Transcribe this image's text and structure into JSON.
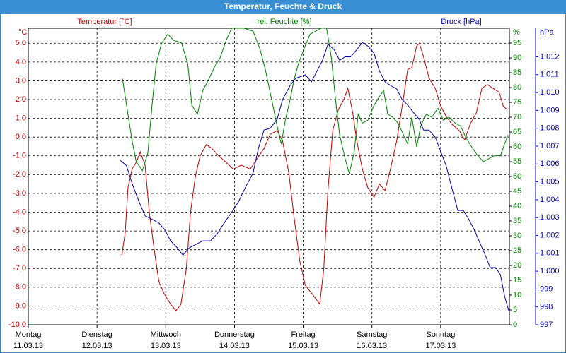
{
  "chart_data": {
    "type": "line",
    "title": "Temperatur, Feuchte & Druck",
    "ylabel": "°C",
    "y2label": "%",
    "y3label": "hPa",
    "xlim": [
      0,
      7
    ],
    "xticks": [
      {
        "value": 0,
        "label": "Montag",
        "date": "11.03.13"
      },
      {
        "value": 1,
        "label": "Dienstag",
        "date": "12.03.13"
      },
      {
        "value": 2,
        "label": "Mittwoch",
        "date": "13.03.13"
      },
      {
        "value": 3,
        "label": "Donnerstag",
        "date": "14.03.13"
      },
      {
        "value": 4,
        "label": "Freitag",
        "date": "15.03.13"
      },
      {
        "value": 5,
        "label": "Samstag",
        "date": "16.03.13"
      },
      {
        "value": 6,
        "label": "Sonntag",
        "date": "17.03.13"
      }
    ],
    "ylim": [
      -10,
      5.8
    ],
    "yticks": [
      {
        "value": 5,
        "label": "5,0"
      },
      {
        "value": 4,
        "label": "4,0"
      },
      {
        "value": 3,
        "label": "3,0"
      },
      {
        "value": 2,
        "label": "2,0"
      },
      {
        "value": 1,
        "label": "1,0"
      },
      {
        "value": 0,
        "label": "0,0"
      },
      {
        "value": -1,
        "label": "-1,0"
      },
      {
        "value": -2,
        "label": "-2,0"
      },
      {
        "value": -3,
        "label": "-3,0"
      },
      {
        "value": -4,
        "label": "-4,0"
      },
      {
        "value": -5,
        "label": "-5,0"
      },
      {
        "value": -6,
        "label": "-6,0"
      },
      {
        "value": -7,
        "label": "-7,0"
      },
      {
        "value": -8,
        "label": "-8,0"
      },
      {
        "value": -9,
        "label": "-9,0"
      },
      {
        "value": -10,
        "label": "-10,0"
      }
    ],
    "y2lim": [
      0,
      100
    ],
    "y2ticks": [
      0,
      5,
      10,
      15,
      20,
      25,
      30,
      35,
      40,
      45,
      50,
      55,
      60,
      65,
      70,
      75,
      80,
      85,
      90,
      95
    ],
    "y3lim": [
      997,
      1013.6
    ],
    "y3ticks": [
      997,
      998,
      999,
      {
        "value": 1000,
        "label": "1.000"
      },
      {
        "value": 1001,
        "label": "1.001"
      },
      {
        "value": 1002,
        "label": "1.002"
      },
      {
        "value": 1003,
        "label": "1.003"
      },
      {
        "value": 1004,
        "label": "1.004"
      },
      {
        "value": 1005,
        "label": "1.005"
      },
      {
        "value": 1006,
        "label": "1.006"
      },
      {
        "value": 1007,
        "label": "1.007"
      },
      {
        "value": 1008,
        "label": "1.008"
      },
      {
        "value": 1009,
        "label": "1.009"
      },
      {
        "value": 1010,
        "label": "1.010"
      },
      {
        "value": 1011,
        "label": "1.011"
      },
      {
        "value": 1012,
        "label": "1.012"
      }
    ],
    "grid": true,
    "series": [
      {
        "name": "Temperatur [°C]",
        "color": "#c00000",
        "axis": "y",
        "x": [
          1.36,
          1.41,
          1.45,
          1.51,
          1.57,
          1.63,
          1.7,
          1.76,
          1.84,
          1.9,
          1.97,
          2.07,
          2.15,
          2.22,
          2.3,
          2.36,
          2.43,
          2.5,
          2.59,
          2.67,
          2.77,
          2.88,
          2.98,
          3.1,
          3.23,
          3.33,
          3.43,
          3.52,
          3.62,
          3.7,
          3.79,
          3.87,
          3.95,
          4.03,
          4.14,
          4.24,
          4.3,
          4.36,
          4.43,
          4.51,
          4.59,
          4.65,
          4.72,
          4.78,
          4.86,
          4.94,
          5.03,
          5.11,
          5.19,
          5.27,
          5.36,
          5.44,
          5.52,
          5.58,
          5.65,
          5.69,
          5.75,
          5.83,
          5.92,
          6.0,
          6.08,
          6.16,
          6.27,
          6.35,
          6.43,
          6.52,
          6.6,
          6.68,
          6.76,
          6.85,
          6.91,
          6.97
        ],
        "values": [
          -6.3,
          -5.1,
          -2.7,
          -1.7,
          -1.35,
          -0.8,
          -1.5,
          -4.0,
          -6.2,
          -7.7,
          -8.3,
          -8.9,
          -9.25,
          -8.9,
          -7.0,
          -4.0,
          -2.1,
          -1.0,
          -0.4,
          -0.6,
          -1.0,
          -1.35,
          -1.7,
          -1.5,
          -1.7,
          -1.15,
          -0.6,
          0.15,
          0.35,
          -0.2,
          -1.9,
          -4.35,
          -6.6,
          -7.9,
          -8.4,
          -8.9,
          -7.0,
          -2.85,
          0.35,
          1.45,
          2.0,
          2.6,
          1.3,
          -0.2,
          -1.7,
          -2.7,
          -3.2,
          -2.5,
          -2.85,
          -1.7,
          -0.2,
          1.65,
          3.6,
          3.7,
          4.85,
          5.0,
          4.3,
          3.15,
          2.6,
          1.65,
          1.1,
          0.7,
          0.35,
          -0.15,
          0.7,
          1.3,
          2.6,
          2.8,
          2.6,
          2.4,
          1.65,
          1.45
        ]
      },
      {
        "name": "rel. Feuchte [%]",
        "color": "#008000",
        "axis": "y2",
        "x": [
          1.37,
          1.43,
          1.51,
          1.57,
          1.66,
          1.74,
          1.8,
          1.86,
          1.94,
          2.03,
          2.11,
          2.23,
          2.32,
          2.38,
          2.46,
          2.54,
          2.63,
          2.71,
          2.79,
          2.88,
          2.96,
          3.04,
          3.14,
          3.27,
          3.37,
          3.45,
          3.54,
          3.62,
          3.68,
          3.74,
          3.81,
          3.87,
          3.93,
          4.01,
          4.1,
          4.18,
          4.26,
          4.34,
          4.41,
          4.47,
          4.53,
          4.61,
          4.67,
          4.74,
          4.8,
          4.86,
          4.94,
          5.03,
          5.11,
          5.17,
          5.23,
          5.3,
          5.38,
          5.46,
          5.52,
          5.58,
          5.65,
          5.71,
          5.79,
          5.87,
          5.96,
          6.04,
          6.12,
          6.21,
          6.29,
          6.37,
          6.45,
          6.54,
          6.62,
          6.7,
          6.78,
          6.87,
          6.93,
          6.98
        ],
        "values": [
          83,
          74,
          62,
          55,
          52,
          58,
          74,
          88,
          95,
          98,
          96,
          95,
          88,
          74,
          71,
          79,
          83,
          87,
          90,
          96,
          100,
          100,
          100,
          99,
          93,
          86,
          76,
          67,
          61,
          69,
          76,
          83,
          88,
          93,
          98,
          99,
          100,
          100,
          90,
          76,
          64,
          56,
          51,
          58,
          71,
          68,
          69,
          74,
          77,
          79,
          71,
          70,
          68,
          64,
          61,
          70,
          60,
          67,
          71,
          70,
          73,
          69,
          70,
          68,
          67,
          63,
          60,
          57,
          55,
          56,
          57,
          57,
          61,
          64
        ]
      },
      {
        "name": "Druck [hPa]",
        "color": "#0000b0",
        "axis": "y3",
        "x": [
          1.34,
          1.43,
          1.51,
          1.61,
          1.7,
          1.8,
          1.9,
          1.99,
          2.07,
          2.17,
          2.25,
          2.34,
          2.44,
          2.54,
          2.65,
          2.75,
          2.85,
          2.96,
          3.06,
          3.16,
          3.27,
          3.35,
          3.43,
          3.52,
          3.62,
          3.7,
          3.81,
          3.89,
          3.97,
          4.03,
          4.12,
          4.2,
          4.28,
          4.36,
          4.45,
          4.53,
          4.61,
          4.69,
          4.78,
          4.86,
          4.94,
          5.03,
          5.11,
          5.19,
          5.27,
          5.36,
          5.44,
          5.52,
          5.6,
          5.69,
          5.75,
          5.83,
          5.92,
          6.0,
          6.08,
          6.16,
          6.25,
          6.33,
          6.41,
          6.49,
          6.58,
          6.66,
          6.72,
          6.8,
          6.87,
          6.93,
          6.99
        ],
        "values": [
          1006.2,
          1005.9,
          1004.9,
          1003.9,
          1003.1,
          1002.9,
          1002.7,
          1002.3,
          1001.7,
          1001.3,
          1000.9,
          1001.3,
          1001.5,
          1001.7,
          1001.7,
          1002.1,
          1002.7,
          1003.3,
          1003.9,
          1004.7,
          1005.5,
          1006.9,
          1007.9,
          1008.0,
          1008.5,
          1009.6,
          1010.4,
          1010.8,
          1010.9,
          1011.0,
          1010.6,
          1011.2,
          1011.8,
          1012.7,
          1012.4,
          1011.8,
          1012.0,
          1012.0,
          1012.4,
          1012.8,
          1012.6,
          1012.2,
          1011.2,
          1010.6,
          1010.4,
          1010.2,
          1009.6,
          1009.3,
          1008.9,
          1008.5,
          1007.9,
          1007.9,
          1007.5,
          1006.7,
          1005.9,
          1004.7,
          1003.4,
          1003.4,
          1002.9,
          1002.3,
          1001.5,
          1000.8,
          1000.2,
          1000.2,
          999.8,
          998.6,
          997.8
        ]
      }
    ]
  }
}
